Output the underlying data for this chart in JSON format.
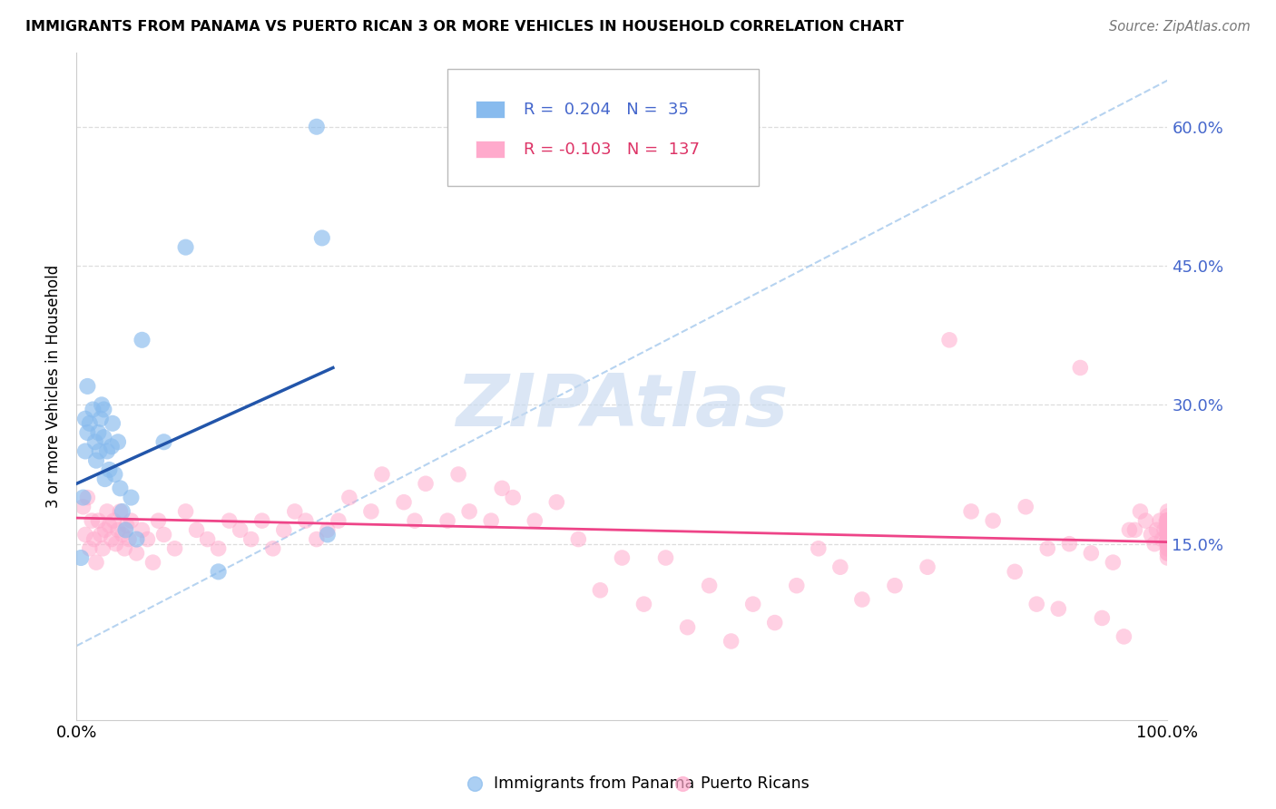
{
  "title": "IMMIGRANTS FROM PANAMA VS PUERTO RICAN 3 OR MORE VEHICLES IN HOUSEHOLD CORRELATION CHART",
  "source": "Source: ZipAtlas.com",
  "ylabel": "3 or more Vehicles in Household",
  "xlim": [
    0.0,
    1.0
  ],
  "ylim": [
    -0.04,
    0.68
  ],
  "yticks": [
    0.15,
    0.3,
    0.45,
    0.6
  ],
  "ytick_labels": [
    "15.0%",
    "30.0%",
    "45.0%",
    "60.0%"
  ],
  "xticks": [
    0.0,
    0.2,
    0.4,
    0.6,
    0.8,
    1.0
  ],
  "xtick_labels": [
    "0.0%",
    "",
    "",
    "",
    "",
    "100.0%"
  ],
  "blue_R": 0.204,
  "blue_N": 35,
  "pink_R": -0.103,
  "pink_N": 137,
  "blue_color": "#88bbee",
  "pink_color": "#ffaacc",
  "blue_line_color": "#2255aa",
  "pink_line_color": "#ee4488",
  "dash_line_color": "#aaccee",
  "legend_blue_label": "Immigrants from Panama",
  "legend_pink_label": "Puerto Ricans",
  "watermark": "ZIPAtlas",
  "watermark_color": "#c8daf0",
  "background_color": "#ffffff",
  "grid_color": "#dddddd",
  "right_tick_color": "#4466cc",
  "blue_x": [
    0.004,
    0.006,
    0.008,
    0.008,
    0.01,
    0.01,
    0.012,
    0.015,
    0.017,
    0.018,
    0.02,
    0.021,
    0.022,
    0.023,
    0.025,
    0.025,
    0.026,
    0.028,
    0.03,
    0.032,
    0.033,
    0.035,
    0.038,
    0.04,
    0.042,
    0.045,
    0.05,
    0.055,
    0.06,
    0.08,
    0.1,
    0.13,
    0.22,
    0.225,
    0.23
  ],
  "blue_y": [
    0.135,
    0.2,
    0.25,
    0.285,
    0.27,
    0.32,
    0.28,
    0.295,
    0.26,
    0.24,
    0.27,
    0.25,
    0.285,
    0.3,
    0.265,
    0.295,
    0.22,
    0.25,
    0.23,
    0.255,
    0.28,
    0.225,
    0.26,
    0.21,
    0.185,
    0.165,
    0.2,
    0.155,
    0.37,
    0.26,
    0.47,
    0.12,
    0.6,
    0.48,
    0.16
  ],
  "pink_x": [
    0.006,
    0.008,
    0.01,
    0.012,
    0.014,
    0.016,
    0.018,
    0.02,
    0.022,
    0.024,
    0.026,
    0.028,
    0.03,
    0.032,
    0.034,
    0.036,
    0.038,
    0.04,
    0.042,
    0.044,
    0.046,
    0.048,
    0.05,
    0.055,
    0.06,
    0.065,
    0.07,
    0.075,
    0.08,
    0.09,
    0.1,
    0.11,
    0.12,
    0.13,
    0.14,
    0.15,
    0.16,
    0.17,
    0.18,
    0.19,
    0.2,
    0.21,
    0.22,
    0.23,
    0.24,
    0.25,
    0.27,
    0.28,
    0.3,
    0.31,
    0.32,
    0.34,
    0.35,
    0.36,
    0.38,
    0.39,
    0.4,
    0.42,
    0.44,
    0.46,
    0.48,
    0.5,
    0.52,
    0.54,
    0.56,
    0.58,
    0.6,
    0.62,
    0.64,
    0.66,
    0.68,
    0.7,
    0.72,
    0.75,
    0.78,
    0.8,
    0.82,
    0.84,
    0.86,
    0.87,
    0.88,
    0.89,
    0.9,
    0.91,
    0.92,
    0.93,
    0.94,
    0.95,
    0.96,
    0.965,
    0.97,
    0.975,
    0.98,
    0.985,
    0.988,
    0.99,
    0.993,
    0.995,
    0.997,
    0.999,
    1.0,
    1.0,
    1.0,
    1.0,
    1.0,
    1.0,
    1.0,
    1.0,
    1.0,
    1.0,
    1.0,
    1.0,
    1.0,
    1.0,
    1.0,
    1.0,
    1.0,
    1.0,
    1.0,
    1.0,
    1.0,
    1.0,
    1.0,
    1.0,
    1.0,
    1.0,
    1.0,
    1.0,
    1.0,
    1.0,
    1.0,
    1.0,
    1.0,
    1.0,
    1.0,
    1.0,
    1.0
  ],
  "pink_y": [
    0.19,
    0.16,
    0.2,
    0.145,
    0.175,
    0.155,
    0.13,
    0.175,
    0.16,
    0.145,
    0.165,
    0.185,
    0.17,
    0.155,
    0.175,
    0.15,
    0.165,
    0.185,
    0.16,
    0.145,
    0.17,
    0.155,
    0.175,
    0.14,
    0.165,
    0.155,
    0.13,
    0.175,
    0.16,
    0.145,
    0.185,
    0.165,
    0.155,
    0.145,
    0.175,
    0.165,
    0.155,
    0.175,
    0.145,
    0.165,
    0.185,
    0.175,
    0.155,
    0.165,
    0.175,
    0.2,
    0.185,
    0.225,
    0.195,
    0.175,
    0.215,
    0.175,
    0.225,
    0.185,
    0.175,
    0.21,
    0.2,
    0.175,
    0.195,
    0.155,
    0.1,
    0.135,
    0.085,
    0.135,
    0.06,
    0.105,
    0.045,
    0.085,
    0.065,
    0.105,
    0.145,
    0.125,
    0.09,
    0.105,
    0.125,
    0.37,
    0.185,
    0.175,
    0.12,
    0.19,
    0.085,
    0.145,
    0.08,
    0.15,
    0.34,
    0.14,
    0.07,
    0.13,
    0.05,
    0.165,
    0.165,
    0.185,
    0.175,
    0.16,
    0.15,
    0.165,
    0.175,
    0.155,
    0.165,
    0.175,
    0.185,
    0.17,
    0.16,
    0.175,
    0.155,
    0.165,
    0.18,
    0.17,
    0.16,
    0.175,
    0.15,
    0.165,
    0.175,
    0.155,
    0.16,
    0.17,
    0.155,
    0.165,
    0.175,
    0.16,
    0.15,
    0.165,
    0.175,
    0.155,
    0.16,
    0.15,
    0.14,
    0.155,
    0.165,
    0.145,
    0.155,
    0.16,
    0.15,
    0.14,
    0.155,
    0.145,
    0.135
  ],
  "blue_line_x": [
    0.0,
    0.235
  ],
  "blue_line_y_start": 0.215,
  "blue_line_y_end": 0.34,
  "pink_line_x": [
    0.0,
    1.0
  ],
  "pink_line_y_start": 0.178,
  "pink_line_y_end": 0.152,
  "dash_line_x": [
    0.0,
    1.0
  ],
  "dash_line_y": [
    0.04,
    0.65
  ]
}
